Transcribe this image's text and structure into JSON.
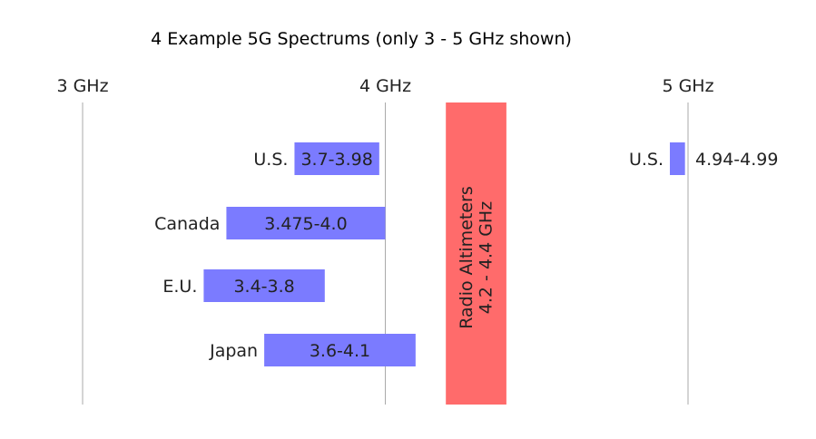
{
  "chart_data": {
    "type": "bar",
    "orientation": "horizontal-range",
    "title": "4 Example 5G Spectrums (only 3 - 5 GHz shown)",
    "xlabel": "",
    "ylabel": "",
    "xlim": [
      3.0,
      5.0
    ],
    "grid": "vertical lines at major ticks",
    "x_ticks": [
      {
        "value": 3,
        "label": "3 GHz"
      },
      {
        "value": 4,
        "label": "4 GHz"
      },
      {
        "value": 5,
        "label": "5 GHz"
      }
    ],
    "ranges": [
      {
        "region": "U.S.",
        "start": 3.7,
        "end": 3.98,
        "label": "3.7-3.98",
        "row": 0,
        "label_outside": false
      },
      {
        "region": "Canada",
        "start": 3.475,
        "end": 4.0,
        "label": "3.475-4.0",
        "row": 1,
        "label_outside": false
      },
      {
        "region": "E.U.",
        "start": 3.4,
        "end": 3.8,
        "label": "3.4-3.8",
        "row": 2,
        "label_outside": false
      },
      {
        "region": "Japan",
        "start": 3.6,
        "end": 4.1,
        "label": "3.6-4.1",
        "row": 3,
        "label_outside": false
      },
      {
        "region": "U.S.",
        "start": 4.94,
        "end": 4.99,
        "label": "4.94-4.99",
        "row": 0,
        "label_outside": true
      }
    ],
    "band": {
      "label_line1": "Radio Altimeters",
      "label_line2": "4.2 - 4.4 GHz",
      "start": 4.2,
      "end": 4.4,
      "color": "#ff6b6b"
    },
    "bar_color": "#7b7bff",
    "gridline_color": "#aaaaaa"
  }
}
